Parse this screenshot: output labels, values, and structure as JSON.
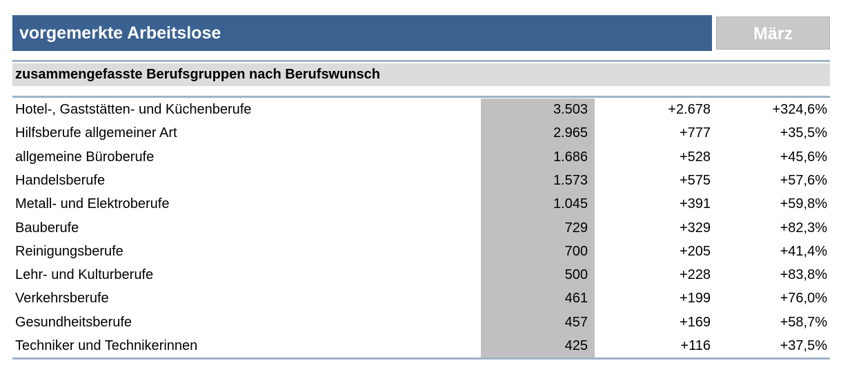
{
  "header": {
    "title": "vorgemerkte Arbeitslose",
    "month": "März"
  },
  "subtitle": "zusammengefasste Berufsgruppen nach Berufswunsch",
  "table": {
    "rows": [
      [
        "Hotel-, Gaststätten- und Küchenberufe",
        "3.503",
        "+2.678",
        "+324,6%"
      ],
      [
        "Hilfsberufe allgemeiner Art",
        "2.965",
        "+777",
        "+35,5%"
      ],
      [
        "allgemeine Büroberufe",
        "1.686",
        "+528",
        "+45,6%"
      ],
      [
        "Handelsberufe",
        "1.573",
        "+575",
        "+57,6%"
      ],
      [
        "Metall- und Elektroberufe",
        "1.045",
        "+391",
        "+59,8%"
      ],
      [
        "Bauberufe",
        "729",
        "+329",
        "+82,3%"
      ],
      [
        "Reinigungsberufe",
        "700",
        "+205",
        "+41,4%"
      ],
      [
        "Lehr- und Kulturberufe",
        "500",
        "+228",
        "+83,8%"
      ],
      [
        "Verkehrsberufe",
        "461",
        "+199",
        "+76,0%"
      ],
      [
        "Gesundheitsberufe",
        "457",
        "+169",
        "+58,7%"
      ],
      [
        "Techniker und Technikerinnen",
        "425",
        "+116",
        "+37,5%"
      ]
    ]
  }
}
